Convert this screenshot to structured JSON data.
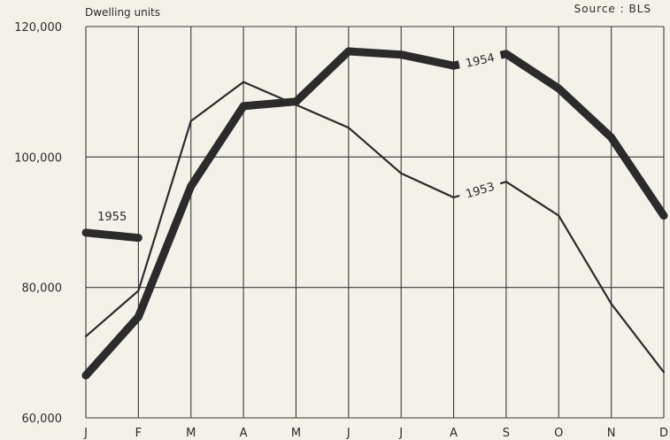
{
  "header": {
    "unit_label": "Dwelling units",
    "source_label": "Source : BLS"
  },
  "colors": {
    "background": "#f3f1e8",
    "grid": "#3a3a3a",
    "line": "#2b2b2b"
  },
  "chart_data": {
    "type": "line",
    "title": "",
    "xlabel": "",
    "ylabel": "Dwelling units",
    "categories": [
      "J",
      "F",
      "M",
      "A",
      "M",
      "J",
      "J",
      "A",
      "S",
      "O",
      "N",
      "D"
    ],
    "ylim": [
      60000,
      120000
    ],
    "yticks": [
      60000,
      80000,
      100000,
      120000
    ],
    "ytick_labels": [
      "60,000",
      "80,000",
      "100,000",
      "120,000"
    ],
    "grid": true,
    "series": [
      {
        "name": "1953",
        "values": [
          72500,
          79500,
          105500,
          111500,
          108000,
          104500,
          97500,
          93800,
          96200,
          91000,
          77500,
          67000
        ]
      },
      {
        "name": "1954",
        "values": [
          66500,
          75500,
          95500,
          107800,
          108500,
          116200,
          115700,
          114000,
          115800,
          110500,
          103000,
          91000
        ]
      },
      {
        "name": "1955",
        "values": [
          88400,
          87600,
          null,
          null,
          null,
          null,
          null,
          null,
          null,
          null,
          null,
          null
        ]
      }
    ]
  }
}
